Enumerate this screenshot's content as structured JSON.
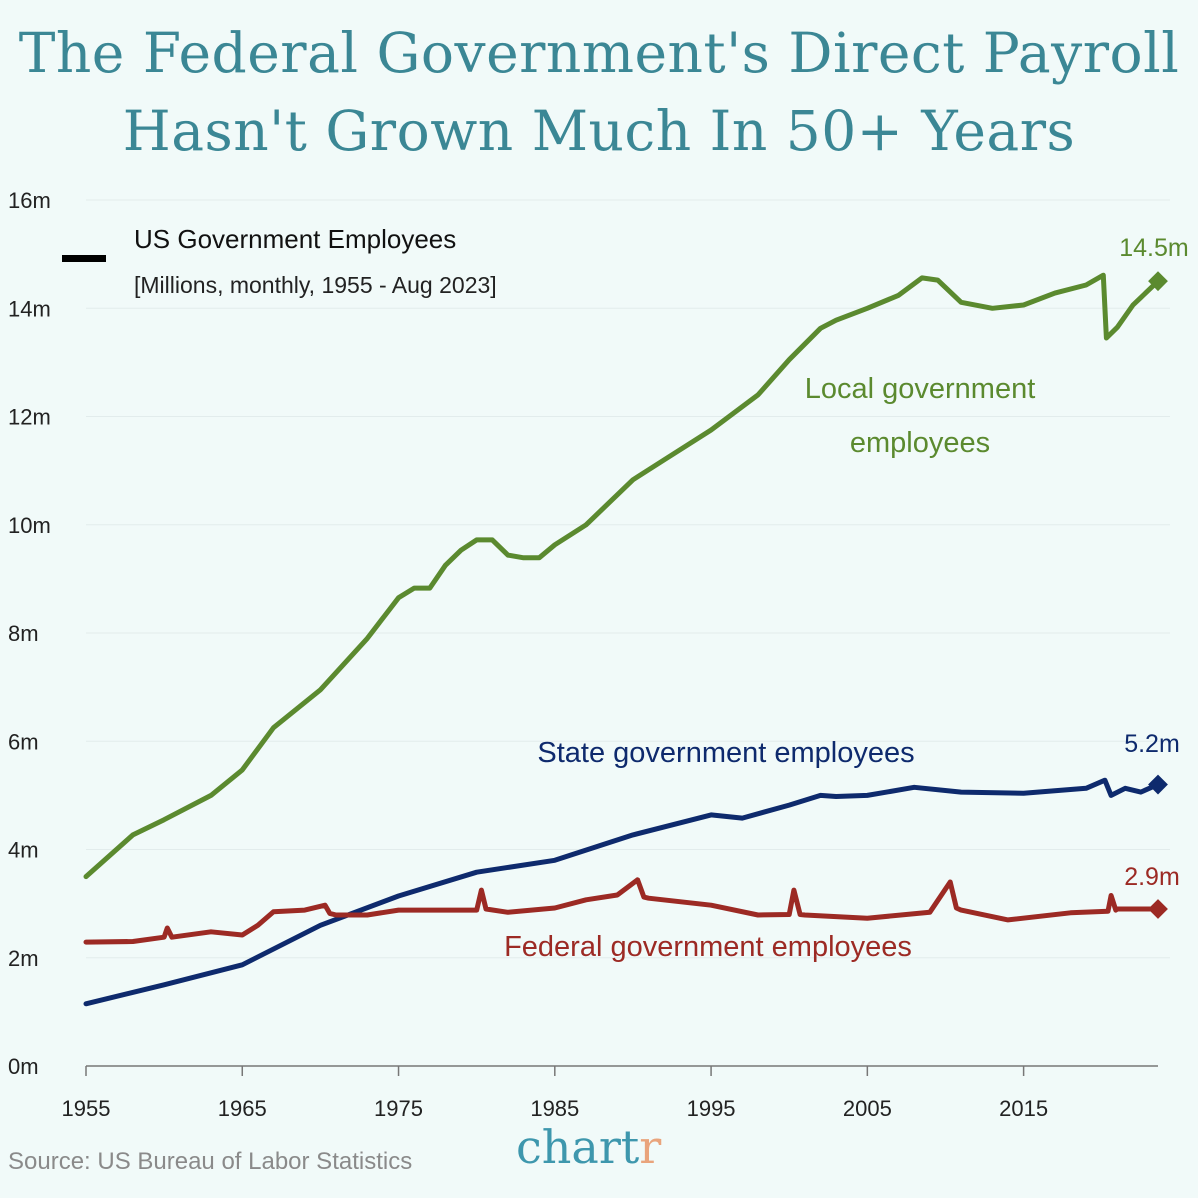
{
  "title_lines": [
    "The Federal Government's Direct Payroll",
    "Hasn't Grown Much In 50+ Years"
  ],
  "source": "Source: US Bureau of Labor Statistics",
  "logo": {
    "main": "chart",
    "accent": "r"
  },
  "chart_data": {
    "type": "line",
    "legend_title": "US Government Employees",
    "legend_subtitle": "[Millions, monthly, 1955 - Aug 2023]",
    "ylim": [
      0,
      16
    ],
    "yticks": [
      0,
      2,
      4,
      6,
      8,
      10,
      12,
      14,
      16
    ],
    "ytick_labels": [
      "0m",
      "2m",
      "4m",
      "6m",
      "8m",
      "10m",
      "12m",
      "14m",
      "16m"
    ],
    "xlim": [
      1955,
      2023.6
    ],
    "xticks": [
      1955,
      1965,
      1975,
      1985,
      1995,
      2005,
      2015
    ],
    "xtick_labels": [
      "1955",
      "1965",
      "1975",
      "1985",
      "1995",
      "2005",
      "2015"
    ],
    "grid": "horizontal",
    "series": [
      {
        "name": "Local government employees",
        "name_lines": [
          "Local government",
          "employees"
        ],
        "color": "#5b8a2f",
        "end_label": "14.5m",
        "points": [
          [
            1955,
            3.5
          ],
          [
            1958,
            4.27
          ],
          [
            1960,
            4.55
          ],
          [
            1963,
            5.0
          ],
          [
            1965,
            5.47
          ],
          [
            1967,
            6.25
          ],
          [
            1970,
            6.95
          ],
          [
            1973,
            7.9
          ],
          [
            1975,
            8.65
          ],
          [
            1976,
            8.83
          ],
          [
            1977,
            8.83
          ],
          [
            1978,
            9.25
          ],
          [
            1979,
            9.53
          ],
          [
            1980,
            9.72
          ],
          [
            1981,
            9.72
          ],
          [
            1982,
            9.44
          ],
          [
            1983,
            9.39
          ],
          [
            1984,
            9.39
          ],
          [
            1985,
            9.63
          ],
          [
            1987,
            10.0
          ],
          [
            1990,
            10.83
          ],
          [
            1992,
            11.2
          ],
          [
            1995,
            11.75
          ],
          [
            1998,
            12.4
          ],
          [
            2000,
            13.05
          ],
          [
            2002,
            13.63
          ],
          [
            2003,
            13.78
          ],
          [
            2005,
            14.0
          ],
          [
            2007,
            14.24
          ],
          [
            2008.5,
            14.56
          ],
          [
            2009.5,
            14.52
          ],
          [
            2011,
            14.11
          ],
          [
            2013,
            14.0
          ],
          [
            2015,
            14.06
          ],
          [
            2017,
            14.28
          ],
          [
            2019,
            14.43
          ],
          [
            2020.1,
            14.61
          ],
          [
            2020.3,
            13.45
          ],
          [
            2021,
            13.65
          ],
          [
            2022,
            14.06
          ],
          [
            2023.6,
            14.5
          ]
        ]
      },
      {
        "name": "State government employees",
        "color": "#0e2a6d",
        "end_label": "5.2m",
        "points": [
          [
            1955,
            1.15
          ],
          [
            1960,
            1.5
          ],
          [
            1965,
            1.87
          ],
          [
            1970,
            2.6
          ],
          [
            1975,
            3.14
          ],
          [
            1980,
            3.58
          ],
          [
            1985,
            3.8
          ],
          [
            1990,
            4.27
          ],
          [
            1995,
            4.64
          ],
          [
            1997,
            4.58
          ],
          [
            2000,
            4.82
          ],
          [
            2002,
            5.0
          ],
          [
            2003,
            4.98
          ],
          [
            2005,
            5.0
          ],
          [
            2008,
            5.15
          ],
          [
            2011,
            5.06
          ],
          [
            2015,
            5.04
          ],
          [
            2019,
            5.13
          ],
          [
            2020.2,
            5.28
          ],
          [
            2020.6,
            5.0
          ],
          [
            2021.5,
            5.13
          ],
          [
            2022.5,
            5.06
          ],
          [
            2023.6,
            5.2
          ]
        ]
      },
      {
        "name": "Federal government employees",
        "color": "#9c2a24",
        "end_label": "2.9m",
        "points": [
          [
            1955,
            2.29
          ],
          [
            1958,
            2.3
          ],
          [
            1960,
            2.38
          ],
          [
            1960.2,
            2.55
          ],
          [
            1960.5,
            2.38
          ],
          [
            1963,
            2.48
          ],
          [
            1965,
            2.42
          ],
          [
            1966,
            2.6
          ],
          [
            1967,
            2.85
          ],
          [
            1969,
            2.88
          ],
          [
            1970.3,
            2.97
          ],
          [
            1970.6,
            2.82
          ],
          [
            1971,
            2.79
          ],
          [
            1973,
            2.79
          ],
          [
            1975,
            2.88
          ],
          [
            1980,
            2.88
          ],
          [
            1980.3,
            3.25
          ],
          [
            1980.6,
            2.9
          ],
          [
            1982,
            2.84
          ],
          [
            1985,
            2.92
          ],
          [
            1987,
            3.07
          ],
          [
            1989,
            3.16
          ],
          [
            1990.3,
            3.44
          ],
          [
            1990.7,
            3.12
          ],
          [
            1991,
            3.1
          ],
          [
            1995,
            2.97
          ],
          [
            1998,
            2.79
          ],
          [
            2000,
            2.8
          ],
          [
            2000.3,
            3.25
          ],
          [
            2000.7,
            2.8
          ],
          [
            2001,
            2.79
          ],
          [
            2005,
            2.73
          ],
          [
            2009,
            2.84
          ],
          [
            2010.3,
            3.4
          ],
          [
            2010.7,
            2.92
          ],
          [
            2011,
            2.88
          ],
          [
            2014,
            2.7
          ],
          [
            2018,
            2.83
          ],
          [
            2020.4,
            2.86
          ],
          [
            2020.6,
            3.15
          ],
          [
            2020.9,
            2.88
          ],
          [
            2021,
            2.9
          ],
          [
            2023.6,
            2.9
          ]
        ]
      }
    ]
  }
}
